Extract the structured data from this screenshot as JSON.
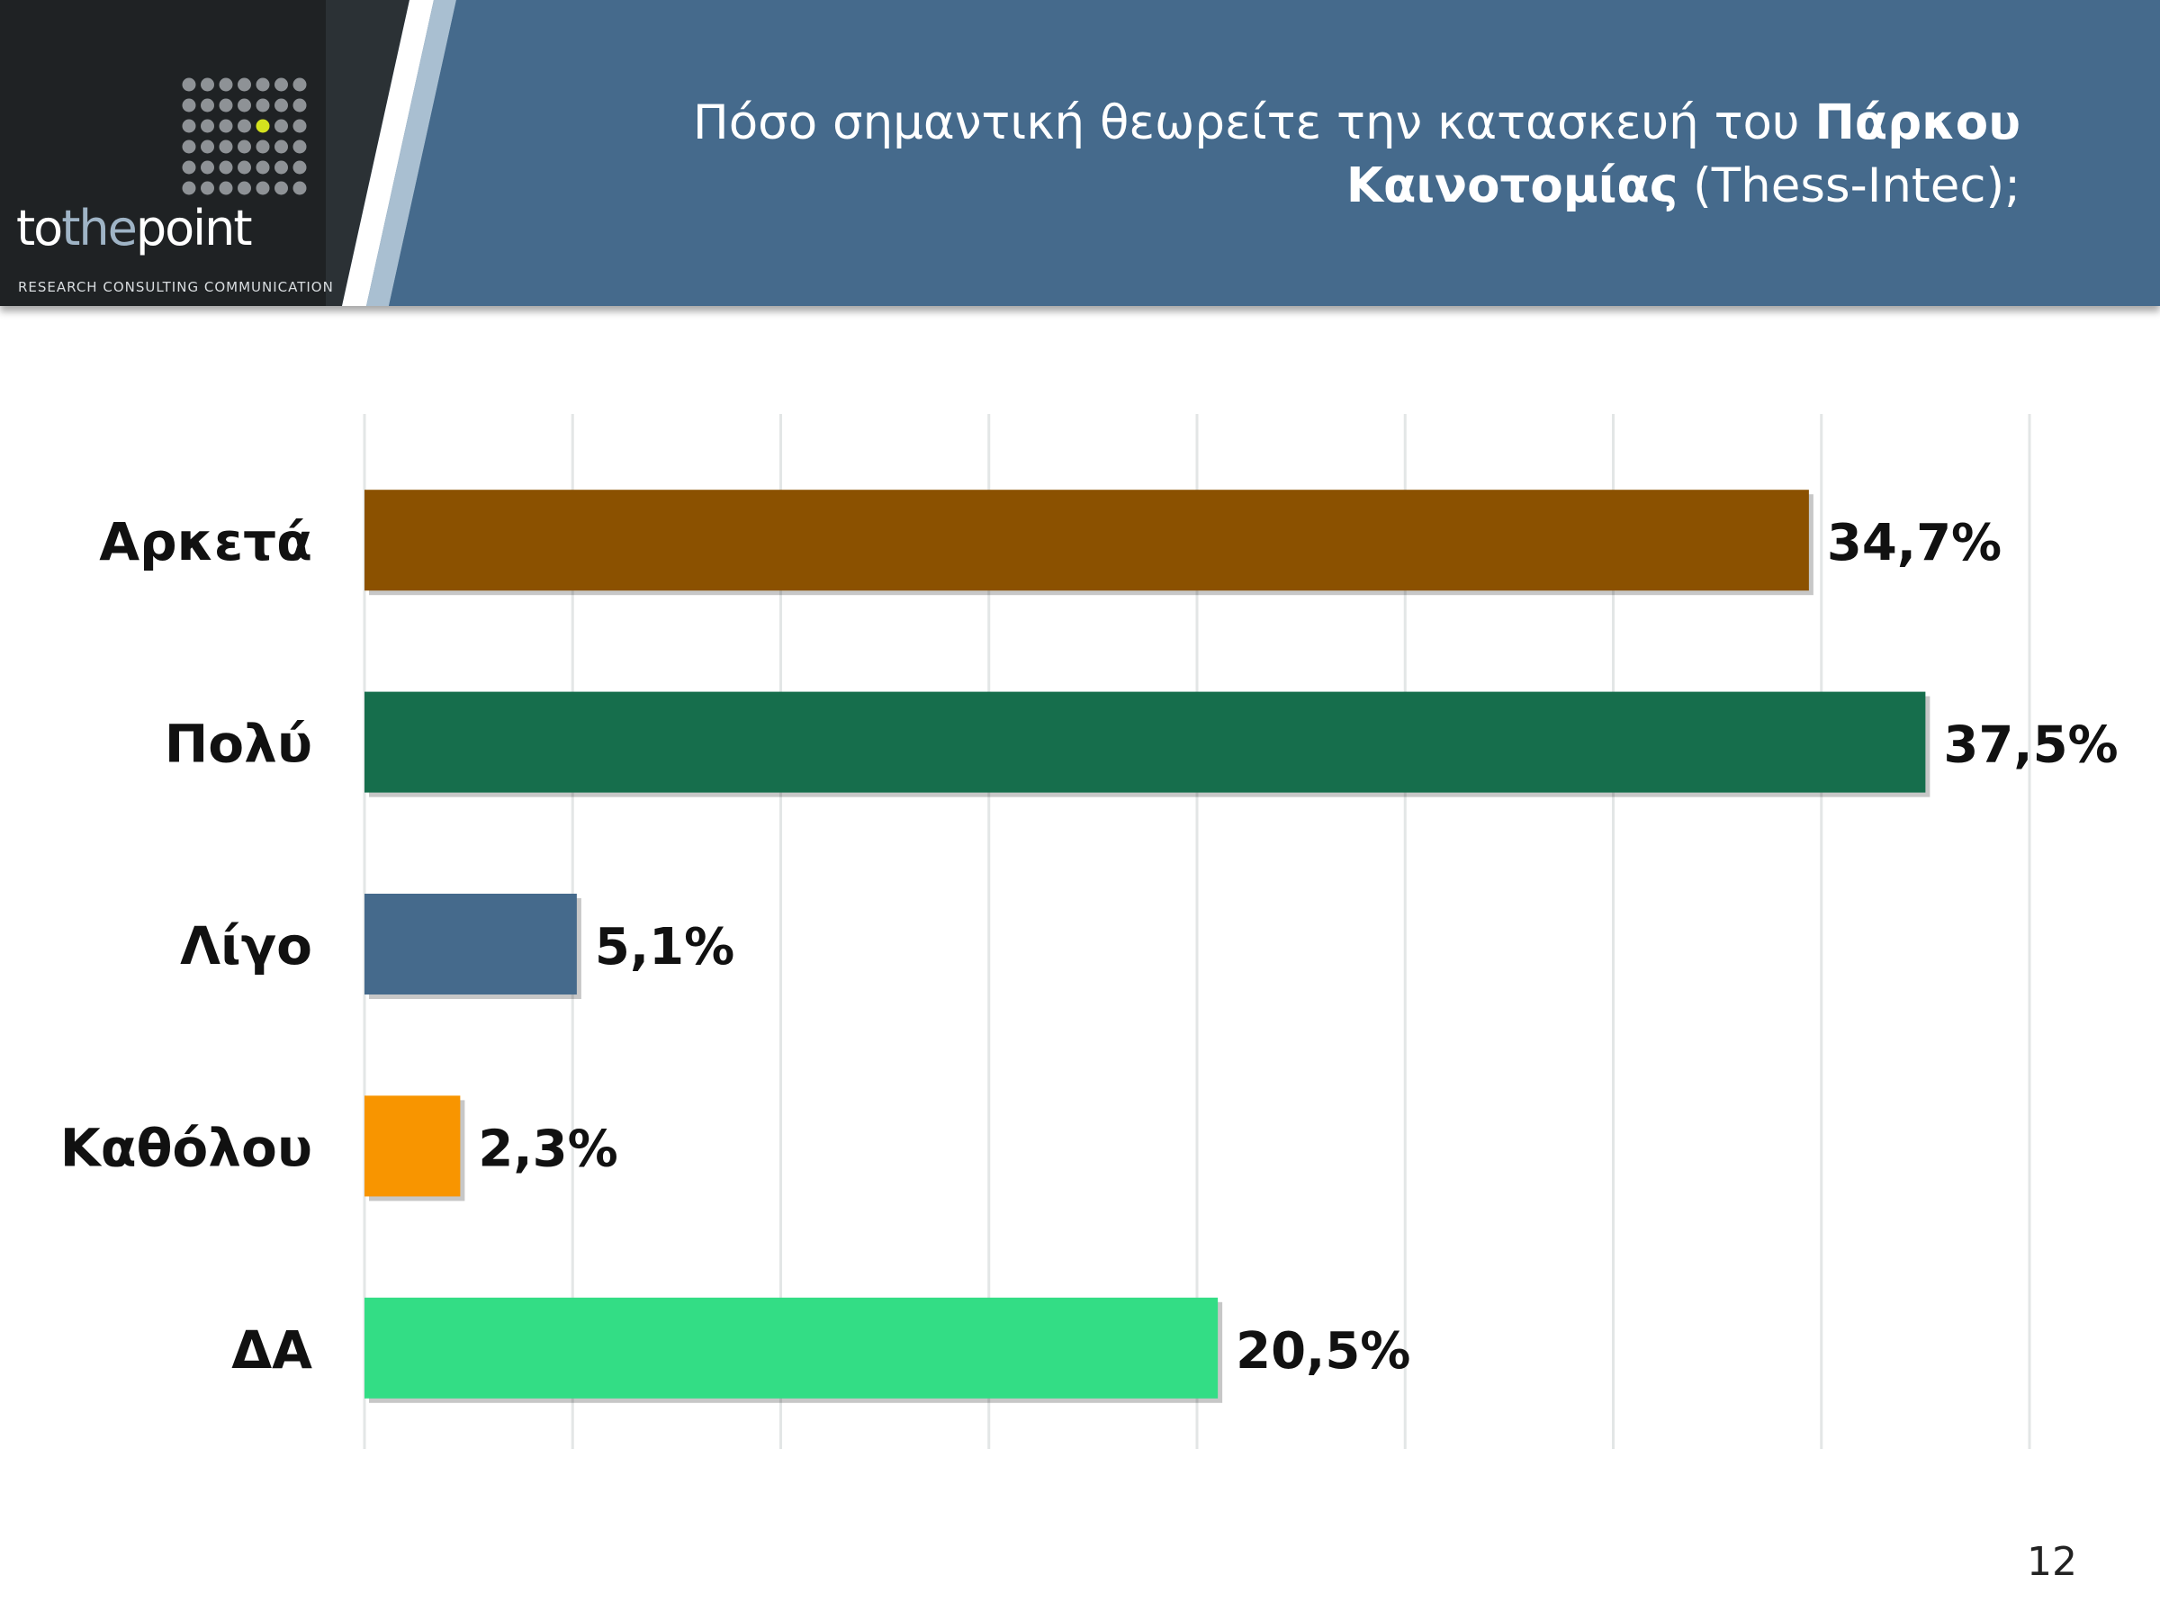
{
  "brand": {
    "wordmark_prefix": "to",
    "wordmark_middle": "the",
    "wordmark_suffix": "point",
    "tagline": "RESEARCH  CONSULTING  COMMUNICATION"
  },
  "header": {
    "title_part1": "Πόσο σημαντική θεωρείτε την κατασκευή του ",
    "title_bold1": "Πάρκου",
    "title_bold2": "Καινοτομίας",
    "title_part2": " (Thess-Intec);"
  },
  "page_number": "12",
  "colors": {
    "header_band": "#456a8c",
    "logo_panel": "#1f2224",
    "accent_dot": "#d4e21e"
  },
  "chart_data": {
    "type": "bar",
    "orientation": "horizontal",
    "categories": [
      "Αρκετά",
      "Πολύ",
      "Λίγο",
      "Καθόλου",
      "ΔΑ"
    ],
    "values": [
      34.7,
      37.5,
      5.1,
      2.3,
      20.5
    ],
    "value_labels": [
      "34,7%",
      "37,5%",
      "5,1%",
      "2,3%",
      "20,5%"
    ],
    "colors": [
      "#8b5100",
      "#166e4c",
      "#456a8c",
      "#f89500",
      "#33dd85"
    ],
    "xlim": [
      0,
      40
    ],
    "x_grid_step": 5,
    "grid": true,
    "title": "",
    "xlabel": "",
    "ylabel": ""
  }
}
